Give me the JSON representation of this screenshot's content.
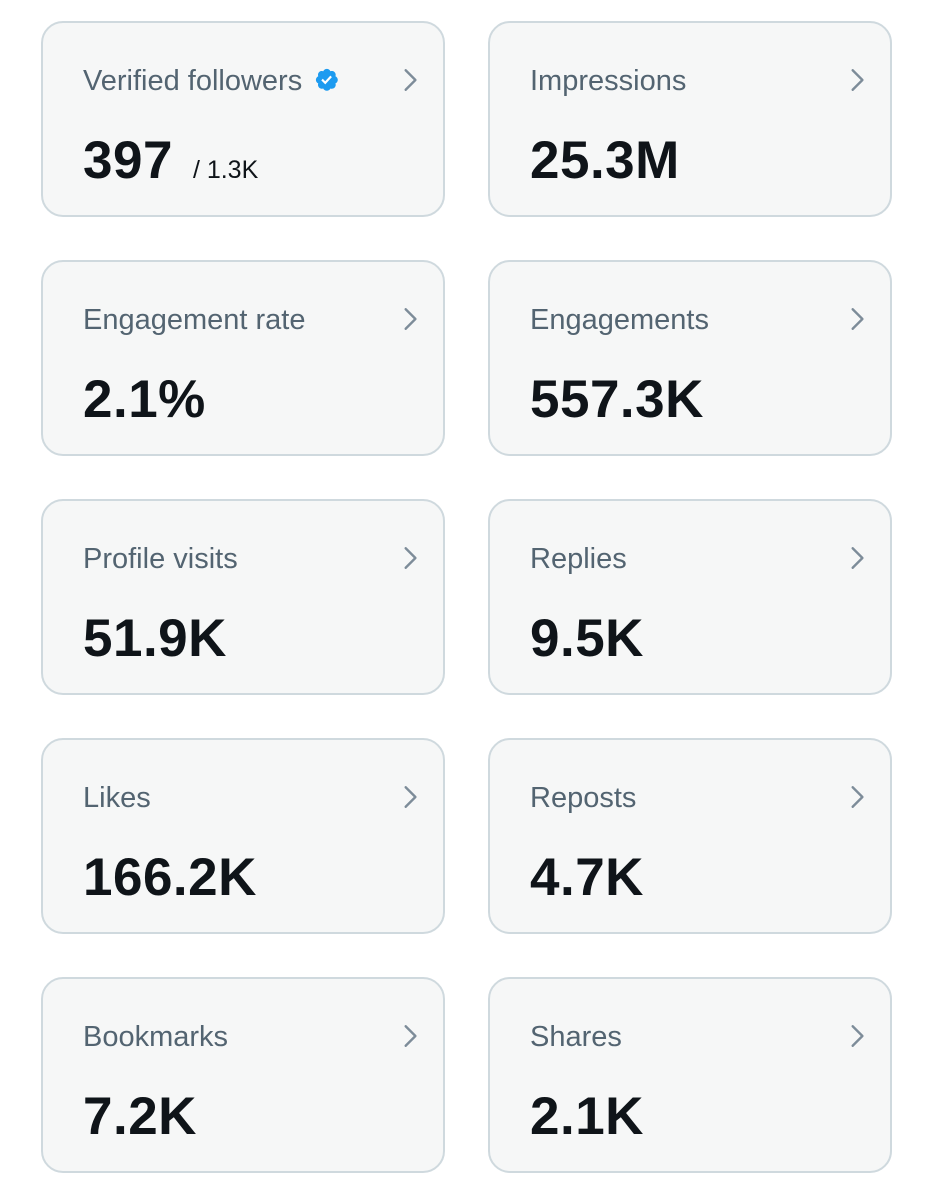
{
  "colors": {
    "card_background": "#f6f7f7",
    "card_border": "#cfd9de",
    "label_text": "#536471",
    "value_text": "#0f1419",
    "verified_badge": "#1d9bf0",
    "chevron": "#7d8c99"
  },
  "metrics": [
    {
      "label": "Verified followers",
      "value": "397",
      "sub": "/ 1.3K",
      "icon": "verified-badge-icon"
    },
    {
      "label": "Impressions",
      "value": "25.3M"
    },
    {
      "label": "Engagement rate",
      "value": "2.1%"
    },
    {
      "label": "Engagements",
      "value": "557.3K"
    },
    {
      "label": "Profile visits",
      "value": "51.9K"
    },
    {
      "label": "Replies",
      "value": "9.5K"
    },
    {
      "label": "Likes",
      "value": "166.2K"
    },
    {
      "label": "Reposts",
      "value": "4.7K"
    },
    {
      "label": "Bookmarks",
      "value": "7.2K"
    },
    {
      "label": "Shares",
      "value": "2.1K"
    }
  ]
}
